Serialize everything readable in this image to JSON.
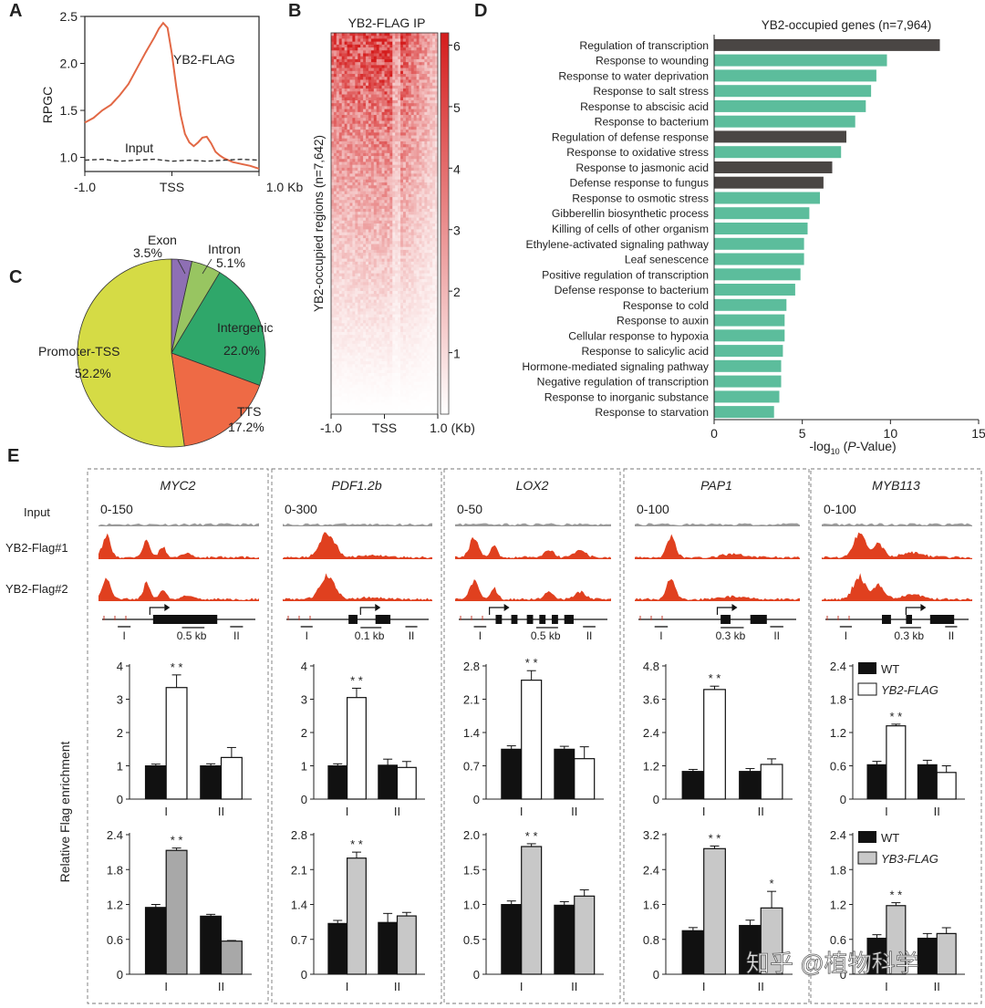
{
  "panels": {
    "a": {
      "letter": "A"
    },
    "b": {
      "letter": "B"
    },
    "c": {
      "letter": "C"
    },
    "d": {
      "letter": "D"
    },
    "e": {
      "letter": "E"
    }
  },
  "watermark": "知乎 @植物科学",
  "chart_data": [
    {
      "id": "A",
      "type": "line",
      "ylabel": "RPGC",
      "ylim": [
        0.85,
        2.5
      ],
      "yticks": [
        "1.0",
        "1.5",
        "2.0",
        "2.5"
      ],
      "xticks": [
        "-1.0",
        "TSS",
        "1.0 Kb"
      ],
      "series": [
        {
          "name": "YB2-FLAG",
          "color": "#e26845",
          "x": [
            -1.0,
            -0.9,
            -0.8,
            -0.7,
            -0.6,
            -0.5,
            -0.4,
            -0.3,
            -0.2,
            -0.15,
            -0.1,
            -0.05,
            0.0,
            0.05,
            0.1,
            0.15,
            0.2,
            0.25,
            0.3,
            0.35,
            0.4,
            0.45,
            0.5,
            0.55,
            0.6,
            0.7,
            0.8,
            0.9,
            1.0
          ],
          "y": [
            1.37,
            1.42,
            1.5,
            1.56,
            1.66,
            1.78,
            1.95,
            2.12,
            2.28,
            2.37,
            2.43,
            2.38,
            2.1,
            1.75,
            1.45,
            1.25,
            1.16,
            1.12,
            1.16,
            1.21,
            1.22,
            1.15,
            1.06,
            1.02,
            0.99,
            0.95,
            0.93,
            0.91,
            0.88
          ]
        },
        {
          "name": "Input",
          "color": "#333333",
          "dashed": true,
          "x": [
            -1.0,
            -0.8,
            -0.6,
            -0.4,
            -0.2,
            0.0,
            0.2,
            0.4,
            0.6,
            0.8,
            1.0
          ],
          "y": [
            0.97,
            0.98,
            0.96,
            0.97,
            0.98,
            0.96,
            0.97,
            0.96,
            0.97,
            0.98,
            0.97
          ]
        }
      ]
    },
    {
      "id": "B",
      "type": "heatmap",
      "title": "YB2-FLAG IP",
      "ylabel": "YB2-occupied regions (n=7,642)",
      "xticks": [
        "-1.0",
        "TSS",
        "1.0 (Kb)"
      ],
      "colorbar_ticks": [
        "1",
        "2",
        "3",
        "4",
        "5",
        "6"
      ],
      "color_range": [
        0,
        6.2
      ],
      "colors": [
        "#ffffff",
        "#d41c1c"
      ]
    },
    {
      "id": "C",
      "type": "pie",
      "slices": [
        {
          "label": "Exon",
          "value": 3.5,
          "pct": "3.5%",
          "color": "#8e6fb4"
        },
        {
          "label": "Intron",
          "value": 5.1,
          "pct": "5.1%",
          "color": "#98c561"
        },
        {
          "label": "Intergenic",
          "value": 22.0,
          "pct": "22.0%",
          "color": "#2fa76a"
        },
        {
          "label": "TTS",
          "value": 17.2,
          "pct": "17.2%",
          "color": "#ee6a45"
        },
        {
          "label": "Promoter-TSS",
          "value": 52.2,
          "pct": "52.2%",
          "color": "#d5db45"
        }
      ]
    },
    {
      "id": "D",
      "type": "bar",
      "orientation": "horizontal",
      "title": "YB2-occupied genes (n=7,964)",
      "xlabel_parts": [
        "-log",
        "10",
        " (",
        "P",
        "-Value)"
      ],
      "xlim": [
        0,
        15
      ],
      "xticks": [
        0,
        5,
        10,
        15
      ],
      "categories": [
        "Regulation of transcription",
        "Response to wounding",
        "Response to water deprivation",
        "Response to salt stress",
        "Response to abscisic acid",
        "Response to bacterium",
        "Regulation of defense response",
        "Response to oxidative stress",
        "Response to jasmonic acid",
        "Defense response to fungus",
        "Response to osmotic stress",
        "Gibberellin biosynthetic process",
        "Killing of cells of other organism",
        "Ethylene-activated signaling pathway",
        "Leaf senescence",
        "Positive regulation of transcription",
        "Defense response to bacterium",
        "Response to cold",
        "Response to auxin",
        "Cellular response to hypoxia",
        "Response to salicylic acid",
        "Hormone-mediated signaling pathway",
        "Negative regulation of transcription",
        "Response to inorganic substance",
        "Response to starvation"
      ],
      "values": [
        12.8,
        9.8,
        9.2,
        8.9,
        8.6,
        8.0,
        7.5,
        7.2,
        6.7,
        6.2,
        6.0,
        5.4,
        5.3,
        5.1,
        5.1,
        4.9,
        4.6,
        4.1,
        4.0,
        4.0,
        3.9,
        3.8,
        3.8,
        3.7,
        3.4
      ],
      "highlight": [
        0,
        6,
        8,
        9
      ],
      "colors": {
        "normal": "#5cbd9c",
        "highlight": "#4a4644"
      }
    },
    {
      "id": "E",
      "type": "bar",
      "ylabel": "Relative Flag enrichment",
      "track_labels": [
        "Input",
        "YB2-Flag#1",
        "YB2-Flag#2"
      ],
      "categories": [
        "I",
        "II"
      ],
      "legends": {
        "top": [
          "WT",
          "YB2-FLAG"
        ],
        "bottom": [
          "WT",
          "YB3-FLAG"
        ]
      },
      "genes": [
        {
          "name": "MYC2",
          "range": "0-150",
          "scale": "0.5 kb",
          "top": {
            "yticks": [
              "0",
              "1",
              "2",
              "3",
              "4"
            ],
            "ymax": 4,
            "wt": [
              1.0,
              1.0
            ],
            "wt_err": [
              0.05,
              0.06
            ],
            "fl": [
              3.35,
              1.25
            ],
            "fl_err": [
              0.38,
              0.3
            ],
            "sig": [
              "* *",
              ""
            ]
          },
          "bottom": {
            "yticks": [
              "0",
              "0.6",
              "1.2",
              "1.8",
              "2.4"
            ],
            "ymax": 2.4,
            "wt": [
              1.15,
              1.0
            ],
            "wt_err": [
              0.05,
              0.03
            ],
            "fl": [
              2.13,
              0.57
            ],
            "fl_err": [
              0.04,
              0.01
            ],
            "sig": [
              "* *",
              ""
            ]
          }
        },
        {
          "name": "PDF1.2b",
          "range": "0-300",
          "scale": "0.1 kb",
          "top": {
            "yticks": [
              "0",
              "1",
              "2",
              "3",
              "4"
            ],
            "ymax": 4,
            "wt": [
              1.0,
              1.02
            ],
            "wt_err": [
              0.06,
              0.18
            ],
            "fl": [
              3.05,
              0.95
            ],
            "fl_err": [
              0.28,
              0.18
            ],
            "sig": [
              "* *",
              ""
            ]
          },
          "bottom": {
            "yticks": [
              "0",
              "0.7",
              "1.4",
              "2.1",
              "2.8"
            ],
            "ymax": 2.8,
            "wt": [
              1.02,
              1.04
            ],
            "wt_err": [
              0.06,
              0.18
            ],
            "fl": [
              2.33,
              1.17
            ],
            "fl_err": [
              0.12,
              0.07
            ],
            "sig": [
              "* *",
              ""
            ]
          }
        },
        {
          "name": "LOX2",
          "range": "0-50",
          "scale": "0.5 kb",
          "top": {
            "yticks": [
              "0",
              "0.7",
              "1.4",
              "2.1",
              "2.8"
            ],
            "ymax": 2.8,
            "wt": [
              1.05,
              1.05
            ],
            "wt_err": [
              0.07,
              0.06
            ],
            "fl": [
              2.5,
              0.85
            ],
            "fl_err": [
              0.2,
              0.25
            ],
            "sig": [
              "* *",
              ""
            ]
          },
          "bottom": {
            "yticks": [
              "0",
              "0.5",
              "1.0",
              "1.5",
              "2.0"
            ],
            "ymax": 2.0,
            "wt": [
              1.0,
              0.99
            ],
            "wt_err": [
              0.05,
              0.05
            ],
            "fl": [
              1.83,
              1.12
            ],
            "fl_err": [
              0.04,
              0.09
            ],
            "sig": [
              "* *",
              ""
            ]
          }
        },
        {
          "name": "PAP1",
          "range": "0-100",
          "scale": "0.3 kb",
          "top": {
            "yticks": [
              "0",
              "1.2",
              "2.4",
              "3.6",
              "4.8"
            ],
            "ymax": 4.8,
            "wt": [
              1.0,
              1.0
            ],
            "wt_err": [
              0.07,
              0.1
            ],
            "fl": [
              3.95,
              1.25
            ],
            "fl_err": [
              0.12,
              0.2
            ],
            "sig": [
              "* *",
              ""
            ]
          },
          "bottom": {
            "yticks": [
              "0",
              "0.8",
              "1.6",
              "2.4",
              "3.2"
            ],
            "ymax": 3.2,
            "wt": [
              1.0,
              1.12
            ],
            "wt_err": [
              0.07,
              0.12
            ],
            "fl": [
              2.88,
              1.52
            ],
            "fl_err": [
              0.06,
              0.38
            ],
            "sig": [
              "* *",
              "*"
            ]
          }
        },
        {
          "name": "MYB113",
          "range": "0-100",
          "scale": "0.3 kb",
          "top": {
            "yticks": [
              "0",
              "0.6",
              "1.2",
              "1.8",
              "2.4"
            ],
            "ymax": 2.4,
            "wt": [
              0.62,
              0.62
            ],
            "wt_err": [
              0.06,
              0.08
            ],
            "fl": [
              1.32,
              0.48
            ],
            "fl_err": [
              0.03,
              0.12
            ],
            "sig": [
              "* *",
              ""
            ]
          },
          "bottom": {
            "yticks": [
              "0",
              "0.6",
              "1.2",
              "1.8",
              "2.4"
            ],
            "ymax": 2.4,
            "wt": [
              0.62,
              0.62
            ],
            "wt_err": [
              0.06,
              0.08
            ],
            "fl": [
              1.18,
              0.7
            ],
            "fl_err": [
              0.05,
              0.1
            ],
            "sig": [
              "* *",
              ""
            ]
          }
        }
      ]
    }
  ]
}
